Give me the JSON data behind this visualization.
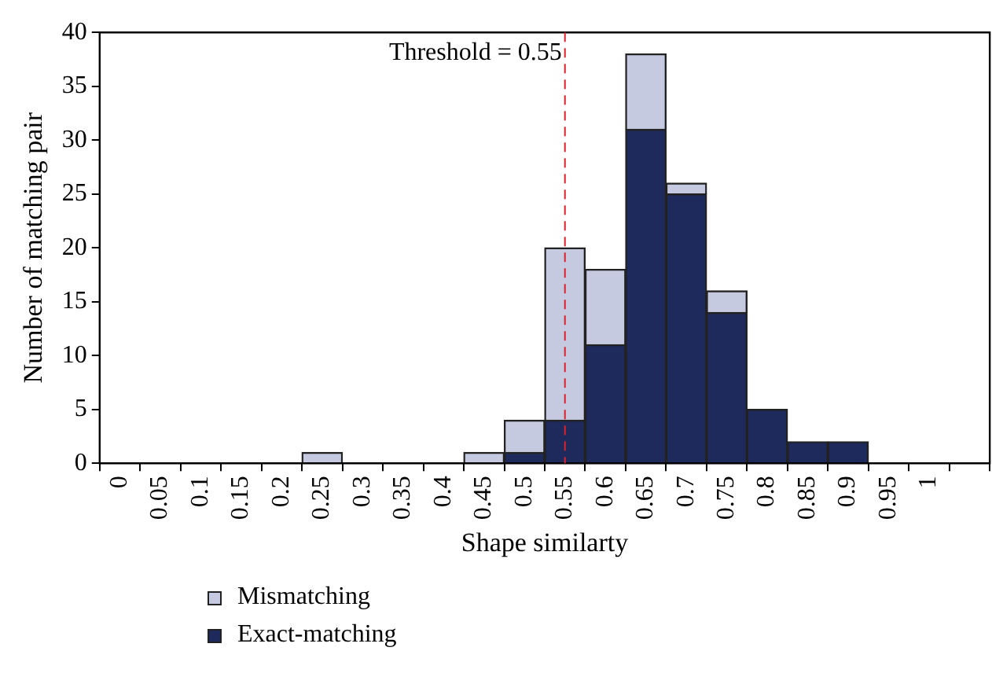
{
  "chart_data": {
    "type": "bar",
    "xlabel": "Shape similarty",
    "ylabel": "Number of matching pair",
    "categories": [
      "0",
      "0.05",
      "0.1",
      "0.15",
      "0.2",
      "0.25",
      "0.3",
      "0.35",
      "0.4",
      "0.45",
      "0.5",
      "0.55",
      "0.6",
      "0.65",
      "0.7",
      "0.75",
      "0.8",
      "0.85",
      "0.9",
      "0.95",
      "1",
      null
    ],
    "stacked": true,
    "series": [
      {
        "name": "Exact-matching",
        "color": "#1f2a5c",
        "values": [
          0,
          0,
          0,
          0,
          0,
          0,
          0,
          0,
          0,
          0,
          1,
          4,
          11,
          31,
          25,
          14,
          5,
          2,
          2,
          0,
          0,
          0
        ]
      },
      {
        "name": "Mismatching",
        "color": "#c5cae0",
        "values": [
          0,
          0,
          0,
          0,
          0,
          1,
          0,
          0,
          0,
          1,
          3,
          16,
          7,
          7,
          1,
          2,
          0,
          0,
          0,
          0,
          0,
          0
        ]
      }
    ],
    "ylim": [
      0,
      40
    ],
    "yticks": [
      0,
      5,
      10,
      15,
      20,
      25,
      30,
      35,
      40
    ],
    "ref_lines": [
      {
        "axis": "x",
        "value": "0.55",
        "label": "Threshold = 0.55",
        "color": "#e0202a",
        "line_style": "dashed"
      }
    ],
    "grid": false,
    "legend": "bottom left"
  }
}
